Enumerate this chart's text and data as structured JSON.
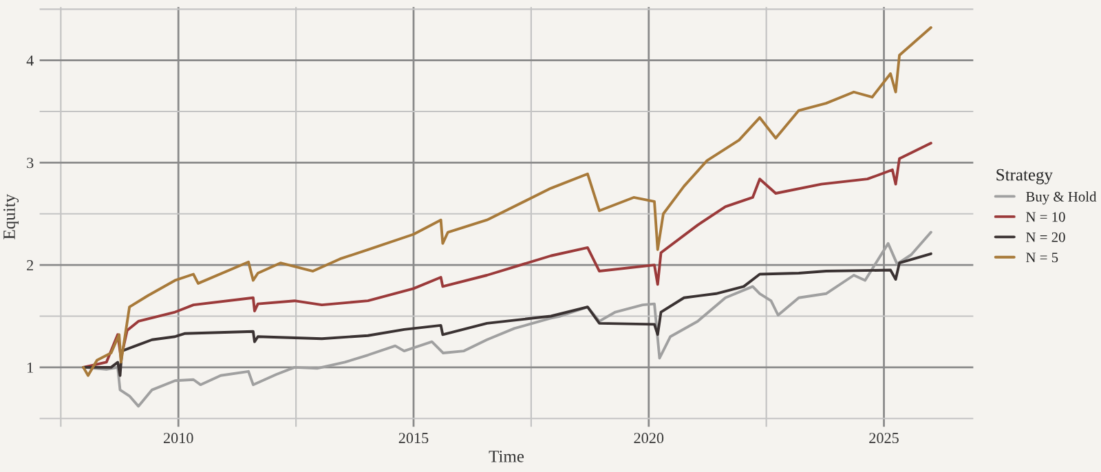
{
  "chart_data": {
    "type": "line",
    "xlabel": "Time",
    "ylabel": "Equity",
    "legend_title": "Strategy",
    "legend": "right",
    "grid": true,
    "marker": "none",
    "line_style": "solid",
    "xlim": [
      2007.05,
      2026.9
    ],
    "xticks": [
      {
        "value": 2007.5,
        "label": null
      },
      2010,
      {
        "value": 2012.5,
        "label": null
      },
      2015,
      {
        "value": 2017.5,
        "label": null
      },
      2020,
      {
        "value": 2022.5,
        "label": null
      },
      2025
    ],
    "ylim": [
      0.42,
      4.52
    ],
    "yticks": [
      {
        "value": 0.5,
        "label": null
      },
      1,
      {
        "value": 1.5,
        "label": null
      },
      2,
      {
        "value": 2.5,
        "label": null
      },
      3,
      {
        "value": 3.5,
        "label": null
      },
      4,
      {
        "value": 4.5,
        "label": null
      }
    ],
    "series": [
      {
        "name": "Buy & Hold",
        "color": "#a0a0a0",
        "x": [
          2007.98,
          2008.47,
          2008.71,
          2008.76,
          2008.96,
          2009.15,
          2009.44,
          2009.93,
          2010.32,
          2010.47,
          2010.9,
          2011.49,
          2011.59,
          2012.08,
          2012.47,
          2012.95,
          2013.54,
          2014.03,
          2014.61,
          2014.8,
          2015.39,
          2015.63,
          2016.07,
          2016.56,
          2017.14,
          2017.92,
          2018.12,
          2018.7,
          2018.95,
          2019.29,
          2019.87,
          2020.12,
          2020.23,
          2020.46,
          2021.04,
          2021.63,
          2022.21,
          2022.36,
          2022.6,
          2022.75,
          2023.19,
          2023.77,
          2024.36,
          2024.6,
          2025.09,
          2025.28,
          2025.58,
          2026.0
        ],
        "values": [
          1.0,
          0.98,
          1.0,
          0.78,
          0.72,
          0.62,
          0.78,
          0.87,
          0.88,
          0.83,
          0.92,
          0.96,
          0.83,
          0.93,
          1.0,
          0.99,
          1.05,
          1.12,
          1.21,
          1.16,
          1.25,
          1.14,
          1.16,
          1.27,
          1.38,
          1.48,
          1.5,
          1.59,
          1.45,
          1.54,
          1.61,
          1.62,
          1.09,
          1.3,
          1.45,
          1.68,
          1.79,
          1.72,
          1.65,
          1.51,
          1.68,
          1.72,
          1.9,
          1.85,
          2.21,
          2.01,
          2.1,
          2.32
        ]
      },
      {
        "name": "N = 10",
        "color": "#9b3a3a",
        "x": [
          2007.98,
          2008.47,
          2008.71,
          2008.78,
          2008.91,
          2009.15,
          2009.93,
          2010.32,
          2011.59,
          2011.62,
          2011.69,
          2012.47,
          2013.05,
          2014.03,
          2015.0,
          2015.58,
          2015.62,
          2016.56,
          2017.92,
          2018.7,
          2018.95,
          2020.12,
          2020.19,
          2020.26,
          2021.04,
          2021.63,
          2022.21,
          2022.36,
          2022.7,
          2023.67,
          2024.65,
          2025.18,
          2025.25,
          2025.33,
          2026.0
        ],
        "values": [
          1.0,
          1.05,
          1.32,
          1.09,
          1.36,
          1.45,
          1.54,
          1.61,
          1.68,
          1.55,
          1.62,
          1.65,
          1.61,
          1.65,
          1.77,
          1.88,
          1.79,
          1.9,
          2.09,
          2.17,
          1.94,
          2.0,
          1.81,
          2.12,
          2.39,
          2.57,
          2.66,
          2.84,
          2.7,
          2.79,
          2.84,
          2.93,
          2.79,
          3.04,
          3.19
        ]
      },
      {
        "name": "N = 20",
        "color": "#3a3232",
        "x": [
          2007.98,
          2008.57,
          2008.71,
          2008.76,
          2008.8,
          2009.15,
          2009.44,
          2009.93,
          2010.13,
          2011.59,
          2011.62,
          2011.69,
          2013.05,
          2014.03,
          2014.8,
          2015.58,
          2015.62,
          2016.56,
          2017.92,
          2018.7,
          2018.95,
          2020.12,
          2020.19,
          2020.26,
          2020.75,
          2021.43,
          2022.02,
          2022.36,
          2023.19,
          2023.77,
          2025.14,
          2025.25,
          2025.33,
          2026.0
        ],
        "values": [
          1.0,
          1.0,
          1.05,
          0.92,
          1.16,
          1.22,
          1.27,
          1.3,
          1.33,
          1.35,
          1.25,
          1.3,
          1.28,
          1.31,
          1.37,
          1.41,
          1.32,
          1.43,
          1.5,
          1.59,
          1.43,
          1.42,
          1.32,
          1.54,
          1.68,
          1.72,
          1.79,
          1.91,
          1.92,
          1.94,
          1.95,
          1.86,
          2.02,
          2.11
        ]
      },
      {
        "name": "N = 5",
        "color": "#a87a3a",
        "x": [
          2007.98,
          2008.08,
          2008.27,
          2008.57,
          2008.74,
          2008.78,
          2008.96,
          2009.35,
          2009.93,
          2010.32,
          2010.42,
          2011.49,
          2011.59,
          2011.69,
          2012.17,
          2012.86,
          2013.44,
          2014.03,
          2015.0,
          2015.58,
          2015.62,
          2015.73,
          2016.56,
          2017.92,
          2018.7,
          2018.95,
          2019.68,
          2020.12,
          2020.19,
          2020.31,
          2020.75,
          2021.24,
          2021.92,
          2022.36,
          2022.7,
          2023.19,
          2023.77,
          2024.36,
          2024.75,
          2025.14,
          2025.25,
          2025.33,
          2026.0
        ],
        "values": [
          1.0,
          0.92,
          1.07,
          1.14,
          1.32,
          1.05,
          1.59,
          1.7,
          1.85,
          1.91,
          1.82,
          2.03,
          1.85,
          1.92,
          2.02,
          1.94,
          2.06,
          2.15,
          2.3,
          2.44,
          2.21,
          2.32,
          2.44,
          2.75,
          2.89,
          2.53,
          2.66,
          2.62,
          2.15,
          2.5,
          2.77,
          3.02,
          3.22,
          3.44,
          3.24,
          3.51,
          3.58,
          3.69,
          3.64,
          3.87,
          3.69,
          4.05,
          4.32
        ]
      }
    ]
  }
}
